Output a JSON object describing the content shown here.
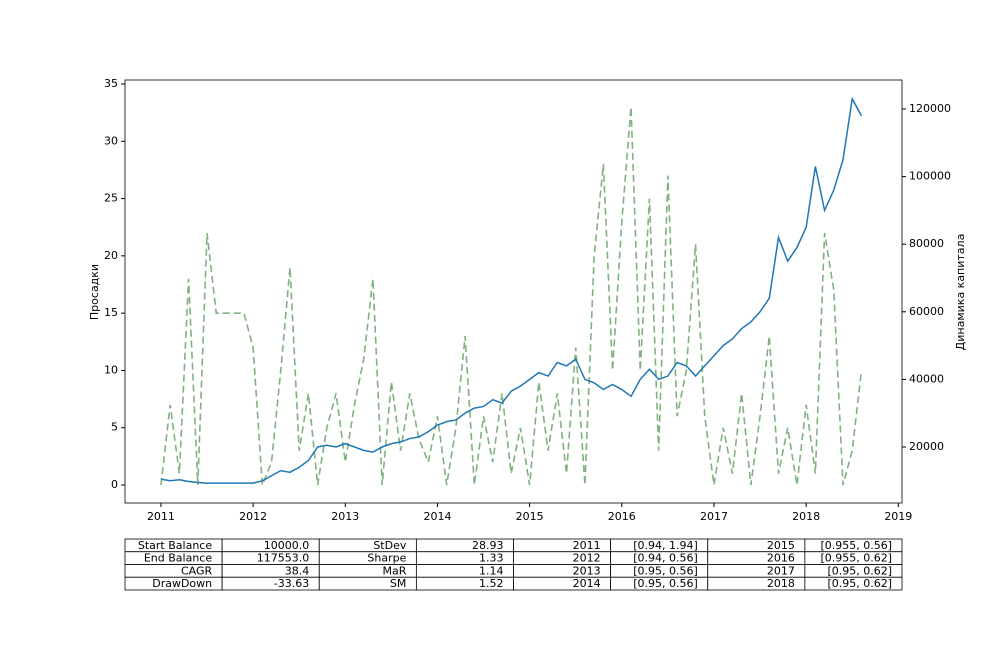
{
  "chart_data": {
    "type": "line",
    "ylabel": "Просадки",
    "y2label": "Динамика капитала",
    "x": [
      2011.0,
      2011.1,
      2011.2,
      2011.3,
      2011.4,
      2011.5,
      2011.6,
      2011.7,
      2011.8,
      2011.9,
      2012.0,
      2012.1,
      2012.2,
      2012.3,
      2012.4,
      2012.5,
      2012.6,
      2012.7,
      2012.8,
      2012.9,
      2013.0,
      2013.1,
      2013.2,
      2013.3,
      2013.4,
      2013.5,
      2013.6,
      2013.7,
      2013.8,
      2013.9,
      2014.0,
      2014.1,
      2014.2,
      2014.3,
      2014.4,
      2014.5,
      2014.6,
      2014.7,
      2014.8,
      2014.9,
      2015.0,
      2015.1,
      2015.2,
      2015.3,
      2015.4,
      2015.5,
      2015.6,
      2015.7,
      2015.8,
      2015.9,
      2016.0,
      2016.1,
      2016.2,
      2016.3,
      2016.4,
      2016.5,
      2016.6,
      2016.7,
      2016.8,
      2016.9,
      2017.0,
      2017.1,
      2017.2,
      2017.3,
      2017.4,
      2017.5,
      2017.6,
      2017.7,
      2017.8,
      2017.9,
      2018.0,
      2018.1,
      2018.2,
      2018.3,
      2018.4,
      2018.5,
      2018.6
    ],
    "series": [
      {
        "color": "#7fb27f",
        "linestyle": "dashed",
        "axis": "y",
        "values": [
          0,
          7,
          1,
          18,
          0,
          22,
          15,
          15,
          15,
          15,
          12,
          0,
          2,
          10,
          19,
          3,
          8,
          0,
          5,
          8,
          2,
          7,
          11,
          18,
          0,
          9,
          3,
          8,
          4,
          2,
          6,
          0,
          5,
          13,
          0,
          6,
          2,
          8,
          1,
          5,
          0,
          9,
          3,
          8,
          1,
          12,
          0,
          20,
          28,
          10,
          23,
          33,
          10,
          25,
          3,
          27,
          6,
          10,
          21,
          6,
          0,
          5,
          1,
          8,
          0,
          6,
          13,
          1,
          5,
          0,
          7,
          1,
          22,
          17,
          0,
          3,
          10
        ]
      },
      {
        "color": "#1f77b4",
        "linestyle": "solid",
        "axis": "y2",
        "values": [
          10500,
          10000,
          10300,
          9800,
          9500,
          9300,
          9300,
          9300,
          9300,
          9300,
          9300,
          10000,
          11500,
          13000,
          12500,
          14000,
          16000,
          20000,
          20500,
          20000,
          21000,
          20000,
          19000,
          18500,
          20000,
          21000,
          21500,
          22500,
          23000,
          24500,
          26500,
          27500,
          28000,
          30000,
          31500,
          32000,
          34000,
          33000,
          36500,
          38000,
          40000,
          42000,
          41000,
          45000,
          44000,
          46000,
          40000,
          39000,
          37000,
          38500,
          37000,
          35000,
          40000,
          43000,
          40000,
          41000,
          45000,
          44000,
          41000,
          44000,
          47000,
          50000,
          52000,
          55000,
          57000,
          60000,
          64000,
          82000,
          75000,
          79000,
          85000,
          103000,
          90000,
          96000,
          105000,
          123000,
          118000
        ]
      }
    ],
    "xlim": [
      2010.61,
      2019.04
    ],
    "xticks": [
      2011,
      2012,
      2013,
      2014,
      2015,
      2016,
      2017,
      2018,
      2019
    ],
    "ylim": [
      -1.57,
      35.35
    ],
    "yticks": [
      0,
      5,
      10,
      15,
      20,
      25,
      30,
      35
    ],
    "y2lim": [
      3430,
      128580
    ],
    "y2ticks": [
      20000,
      40000,
      60000,
      80000,
      100000,
      120000
    ]
  },
  "table": {
    "rows": [
      [
        "Start Balance",
        "10000.0",
        "StDev",
        "28.93",
        "2011",
        "[0.94, 1.94]",
        "2015",
        "[0.955, 0.56]"
      ],
      [
        "End Balance",
        "117553.0",
        "Sharpe",
        "1.33",
        "2012",
        "[0.94, 0.56]",
        "2016",
        "[0.955, 0.62]"
      ],
      [
        "CAGR",
        "38.4",
        "MaR",
        "1.14",
        "2013",
        "[0.95, 0.56]",
        "2017",
        "[0.95, 0.62]"
      ],
      [
        "DrawDown",
        "-33.63",
        "SM",
        "1.52",
        "2014",
        "[0.95, 0.56]",
        "2018",
        "[0.95, 0.62]"
      ]
    ]
  }
}
